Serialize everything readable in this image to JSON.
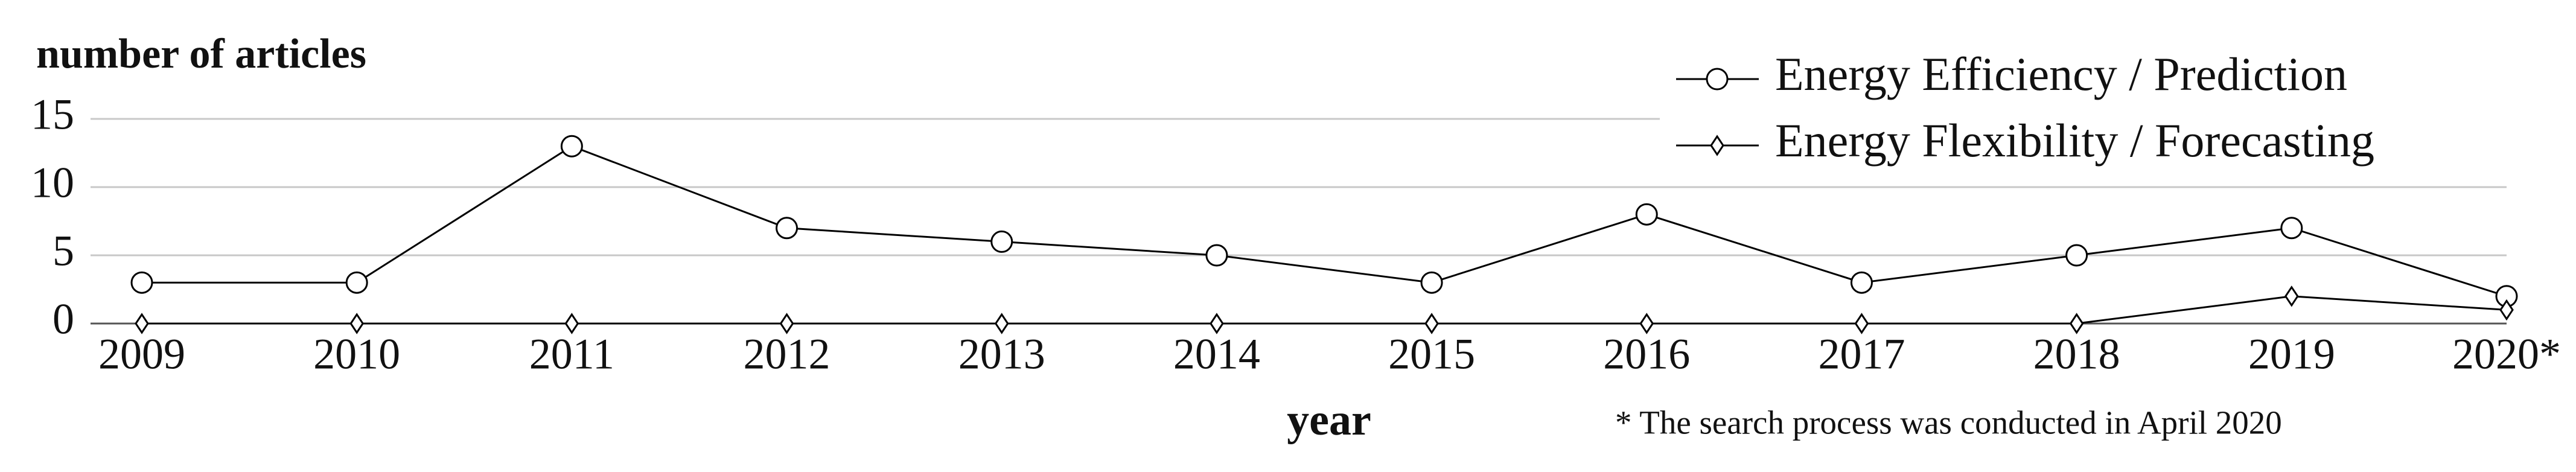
{
  "chart_data": {
    "type": "line",
    "y_label": "number of articles",
    "x_label": "year",
    "note": "* The search process was conducted in April 2020",
    "categories": [
      "2009",
      "2010",
      "2011",
      "2012",
      "2013",
      "2014",
      "2015",
      "2016",
      "2017",
      "2018",
      "2019",
      "2020*"
    ],
    "series": [
      {
        "name": "Energy Efficiency / Prediction",
        "color": "#000000",
        "marker": "circle",
        "values": [
          3,
          3,
          13,
          7,
          6,
          5,
          3,
          8,
          3,
          5,
          7,
          2
        ]
      },
      {
        "name": "Energy Flexibility / Forecasting",
        "color": "#000000",
        "marker": "diamond",
        "values": [
          0,
          0,
          0,
          0,
          0,
          0,
          0,
          0,
          0,
          0,
          2,
          1
        ]
      }
    ],
    "ylim": [
      0,
      15
    ],
    "yticks": [
      0,
      5,
      10,
      15
    ],
    "grid": true,
    "legend": "upper right"
  }
}
